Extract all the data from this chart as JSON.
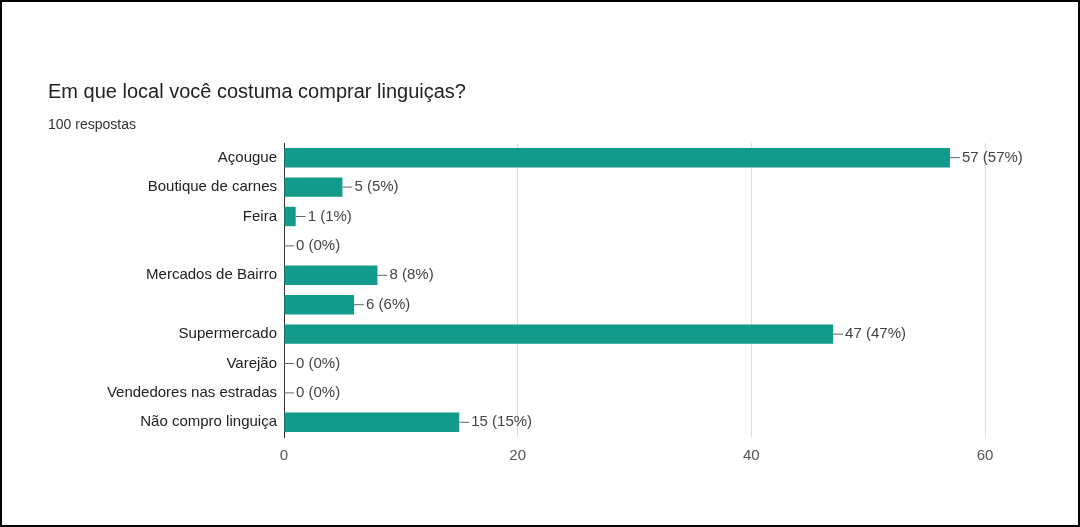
{
  "chart_data": {
    "type": "bar",
    "orientation": "horizontal",
    "title": "Em que local você costuma comprar linguiças?",
    "subtitle": "100 respostas",
    "categories": [
      "Açougue",
      "Boutique de carnes",
      "Feira",
      null,
      "Mercados de Bairro",
      null,
      "Supermercado",
      "Varejão",
      "Vendedores nas estradas",
      "Não compro linguiça"
    ],
    "values": [
      57,
      5,
      1,
      0,
      8,
      6,
      47,
      0,
      0,
      15
    ],
    "value_labels": [
      "57 (57%)",
      "5 (5%)",
      "1 (1%)",
      "0 (0%)",
      "8 (8%)",
      "6 (6%)",
      "47 (47%)",
      "0 (0%)",
      "0 (0%)",
      "15 (15%)"
    ],
    "color": "#129a8a",
    "xlim": [
      0,
      60
    ],
    "xticks": [
      0,
      20,
      40,
      60
    ],
    "grid": "x"
  }
}
